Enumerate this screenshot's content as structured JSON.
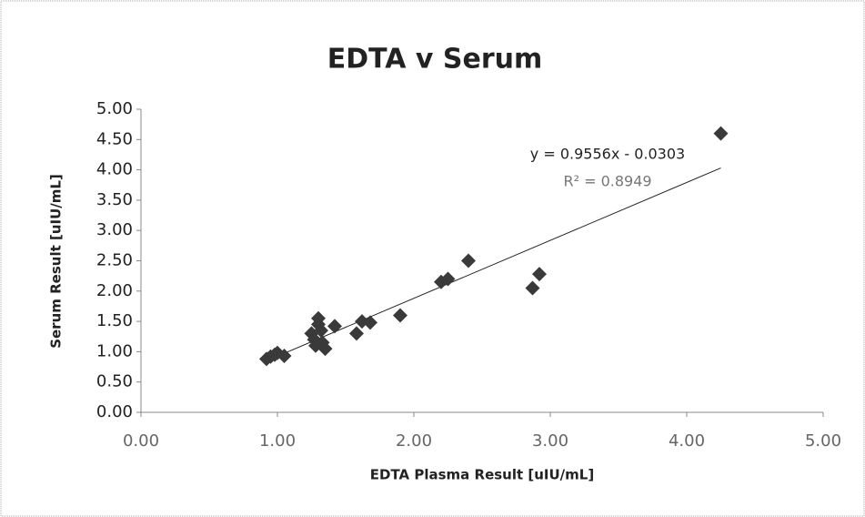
{
  "chart_data": {
    "type": "scatter",
    "title": "EDTA v Serum",
    "x_label": "EDTA Plasma Result [uIU/mL]",
    "y_label": "Serum Result [uIU/mL]",
    "color": "#3a3a3a",
    "x": [
      0.92,
      0.95,
      0.98,
      1.0,
      1.05,
      1.25,
      1.27,
      1.28,
      1.3,
      1.3,
      1.32,
      1.33,
      1.35,
      1.42,
      1.58,
      1.62,
      1.68,
      1.9,
      2.2,
      2.25,
      2.4,
      2.87,
      2.92,
      4.25
    ],
    "values": [
      0.88,
      0.92,
      0.95,
      0.98,
      0.93,
      1.3,
      1.2,
      1.1,
      1.45,
      1.55,
      1.35,
      1.15,
      1.05,
      1.42,
      1.3,
      1.5,
      1.48,
      1.6,
      2.15,
      2.2,
      2.5,
      2.05,
      2.28,
      4.6
    ],
    "trendline": {
      "slope": 0.9556,
      "intercept": -0.0303,
      "equation": "y = 0.9556x - 0.0303",
      "r2": "R² = 0.8949"
    },
    "xlim": [
      0,
      5
    ],
    "ylim": [
      0,
      5
    ],
    "xticks": [
      {
        "value": 0,
        "label": "0.00"
      },
      {
        "value": 1,
        "label": "1.00"
      },
      {
        "value": 2,
        "label": "2.00"
      },
      {
        "value": 3,
        "label": "3.00"
      },
      {
        "value": 4,
        "label": "4.00"
      },
      {
        "value": 5,
        "label": "5.00"
      }
    ],
    "yticks": [
      {
        "value": 0,
        "label": "0.00"
      },
      {
        "value": 0.5,
        "label": "0.50"
      },
      {
        "value": 1,
        "label": "1.00"
      },
      {
        "value": 1.5,
        "label": "1.50"
      },
      {
        "value": 2,
        "label": "2.00"
      },
      {
        "value": 2.5,
        "label": "2.50"
      },
      {
        "value": 3,
        "label": "3.00"
      },
      {
        "value": 3.5,
        "label": "3.50"
      },
      {
        "value": 4,
        "label": "4.00"
      },
      {
        "value": 4.5,
        "label": "4.50"
      },
      {
        "value": 5,
        "label": "5.00"
      }
    ]
  }
}
